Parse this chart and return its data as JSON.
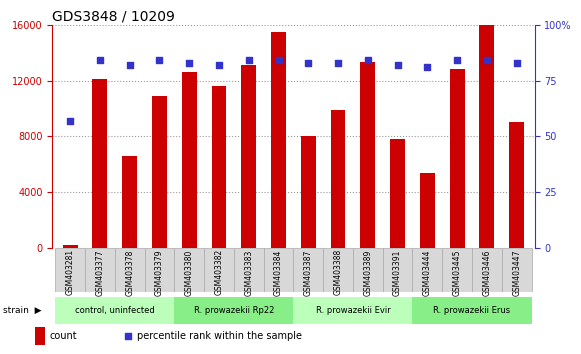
{
  "title": "GDS3848 / 10209",
  "samples": [
    "GSM403281",
    "GSM403377",
    "GSM403378",
    "GSM403379",
    "GSM403380",
    "GSM403382",
    "GSM403383",
    "GSM403384",
    "GSM403387",
    "GSM403388",
    "GSM403389",
    "GSM403391",
    "GSM403444",
    "GSM403445",
    "GSM403446",
    "GSM403447"
  ],
  "counts": [
    200,
    12100,
    6600,
    10900,
    12600,
    11600,
    13100,
    15500,
    8000,
    9900,
    13300,
    7800,
    5400,
    12800,
    16000,
    9000
  ],
  "percentiles": [
    57,
    84,
    82,
    84,
    83,
    82,
    84,
    84,
    83,
    83,
    84,
    82,
    81,
    84,
    84,
    83
  ],
  "bar_color": "#cc0000",
  "dot_color": "#3333cc",
  "left_yaxis_color": "#cc0000",
  "right_yaxis_color": "#3333cc",
  "left_ylim": [
    0,
    16000
  ],
  "right_ylim": [
    0,
    100
  ],
  "left_yticks": [
    0,
    4000,
    8000,
    12000,
    16000
  ],
  "right_yticks": [
    0,
    25,
    50,
    75,
    100
  ],
  "right_ytick_labels": [
    "0",
    "25",
    "50",
    "75",
    "100%"
  ],
  "groups": [
    {
      "label": "control, uninfected",
      "start": 0,
      "end": 3,
      "color": "#bbffbb"
    },
    {
      "label": "R. prowazekii Rp22",
      "start": 4,
      "end": 7,
      "color": "#88ee88"
    },
    {
      "label": "R. prowazekii Evir",
      "start": 8,
      "end": 11,
      "color": "#bbffbb"
    },
    {
      "label": "R. prowazekii Erus",
      "start": 12,
      "end": 15,
      "color": "#88ee88"
    }
  ],
  "strain_label": "strain",
  "legend_count_label": "count",
  "legend_percentile_label": "percentile rank within the sample",
  "background_color": "#ffffff",
  "plot_background": "#ffffff",
  "grid_color": "#888888",
  "sample_cell_color": "#d8d8d8",
  "sample_cell_border": "#aaaaaa",
  "tick_label_fontsize": 7,
  "title_fontsize": 10
}
